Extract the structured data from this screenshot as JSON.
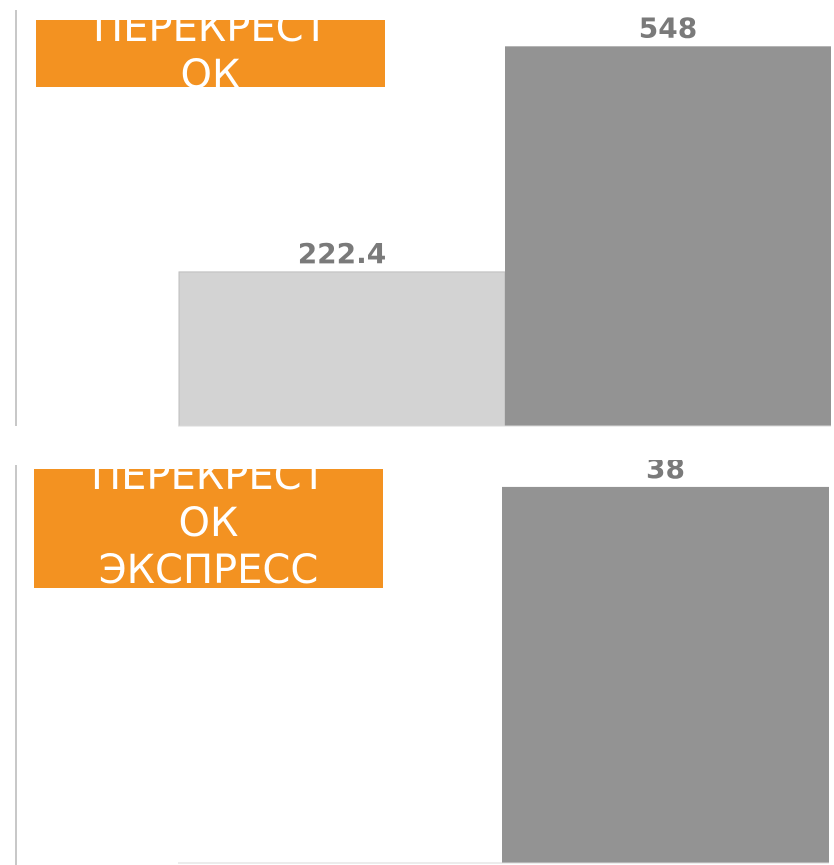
{
  "charts": [
    {
      "label": "ПЕРЕКРЕСТОК",
      "label_lines": [
        "ПЕРЕКРЕСТ",
        "ОК"
      ]
    },
    {
      "label": "ПЕРЕКРЕСТОК ЭКСПРЕСС",
      "label_lines": [
        "ПЕРЕКРЕСТ",
        "ОК",
        "ЭКСПРЕСС"
      ]
    }
  ],
  "colors": {
    "label_bg": "#f39221",
    "bar_light": "#d3d3d3",
    "bar_dark": "#939393",
    "data_label": "#7a7a7a"
  },
  "chart_data": [
    {
      "type": "bar",
      "title": "ПЕРЕКРЕСТОК",
      "series": [
        {
          "values": [
            222.4
          ]
        },
        {
          "values": [
            548
          ]
        }
      ],
      "data_labels": [
        "222.4",
        "548"
      ],
      "ylim": [
        0,
        560
      ]
    },
    {
      "type": "bar",
      "title": "ПЕРЕКРЕСТОК ЭКСПРЕСС",
      "series": [
        {
          "values": [
            0
          ]
        },
        {
          "values": [
            38
          ]
        }
      ],
      "data_labels": [
        "38"
      ],
      "ylim": [
        0,
        38.8
      ]
    }
  ]
}
